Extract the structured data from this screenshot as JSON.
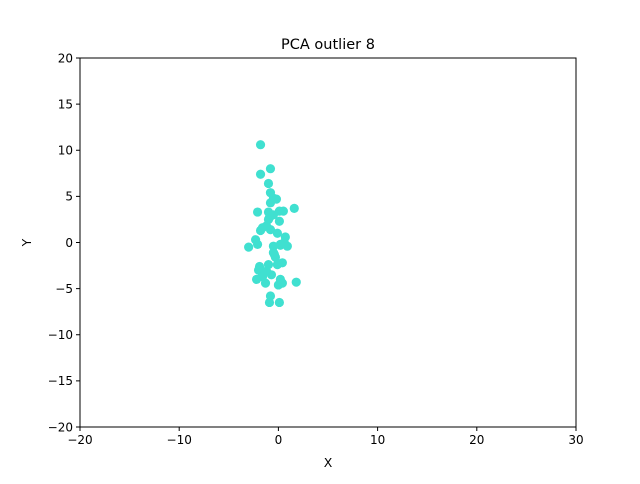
{
  "chart_data": {
    "type": "scatter",
    "title": "PCA outlier 8",
    "xlabel": "X",
    "ylabel": "Y",
    "xlim": [
      -20,
      30
    ],
    "ylim": [
      -20,
      20
    ],
    "xticks": [
      -20,
      -10,
      0,
      10,
      20,
      30
    ],
    "yticks": [
      -20,
      -15,
      -10,
      -5,
      0,
      5,
      10,
      15,
      20
    ],
    "xtick_labels": [
      "−20",
      "−10",
      "0",
      "10",
      "20",
      "30"
    ],
    "ytick_labels": [
      "−20",
      "−15",
      "−10",
      "−5",
      "0",
      "5",
      "10",
      "15",
      "20"
    ],
    "grid": false,
    "legend": "none",
    "marker_color": "#40e0d0",
    "series": [
      {
        "x": [
          -1.8,
          -1.8,
          -0.8,
          -1.0,
          -0.8,
          -0.5,
          -0.2,
          -0.8,
          -1.0,
          -2.1,
          -0.5,
          -0.9,
          -1.0,
          0.1,
          0.5,
          -1.6,
          0.1,
          -1.2,
          -1.8,
          -0.8,
          1.6,
          0.7,
          -0.1,
          0.6,
          0.2,
          -2.3,
          -0.5,
          -2.1,
          -3.0,
          0.2,
          0.9,
          -0.5,
          -0.4,
          -0.3,
          0.4,
          -1.0,
          -0.1,
          -1.9,
          -2.0,
          -1.7,
          -1.2,
          -0.7,
          -1.6,
          -2.2,
          -1.3,
          0.2,
          0.4,
          0.0,
          1.8,
          -0.8,
          -0.9,
          0.1
        ],
        "y": [
          10.6,
          7.4,
          8.0,
          6.4,
          5.4,
          4.8,
          4.7,
          4.3,
          3.3,
          3.3,
          3.0,
          2.7,
          2.5,
          3.4,
          3.4,
          1.6,
          2.3,
          1.8,
          1.3,
          1.4,
          3.7,
          0.6,
          1.0,
          0.0,
          -0.2,
          0.3,
          -0.4,
          -0.2,
          -0.5,
          -0.3,
          -0.4,
          -1.1,
          -1.3,
          -1.6,
          -2.2,
          -2.4,
          -2.4,
          -2.6,
          -3.0,
          -3.2,
          -3.1,
          -3.5,
          -3.7,
          -4.0,
          -4.4,
          -4.0,
          -4.4,
          -4.6,
          -4.3,
          -5.8,
          -6.5,
          -6.5
        ]
      }
    ]
  }
}
